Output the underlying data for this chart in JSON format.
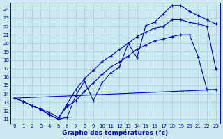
{
  "xlabel": "Graphe des températures (°c)",
  "background_color": "#cce8f0",
  "grid_color": "#aaccdd",
  "line_color": "#0000cc",
  "xlim": [
    -0.5,
    23.5
  ],
  "ylim": [
    10.5,
    24.8
  ],
  "xticks": [
    0,
    1,
    2,
    3,
    4,
    5,
    6,
    7,
    8,
    9,
    10,
    11,
    12,
    13,
    14,
    15,
    16,
    17,
    18,
    19,
    20,
    21,
    22,
    23
  ],
  "yticks": [
    11,
    12,
    13,
    14,
    15,
    16,
    17,
    18,
    19,
    20,
    21,
    22,
    23,
    24
  ],
  "line1_x": [
    0,
    1,
    2,
    3,
    4,
    5,
    6,
    7,
    8,
    9,
    10,
    11,
    12,
    13,
    14,
    15,
    16,
    17,
    18,
    19,
    20,
    21,
    22,
    23
  ],
  "line1_y": [
    13.5,
    13.1,
    12.6,
    12.2,
    11.5,
    11.0,
    11.2,
    13.8,
    15.5,
    13.2,
    15.3,
    16.5,
    17.2,
    20.0,
    18.3,
    22.1,
    22.5,
    23.5,
    24.5,
    24.5,
    23.8,
    23.3,
    22.8,
    22.3
  ],
  "line2_x": [
    0,
    1,
    2,
    3,
    4,
    5,
    6,
    7,
    8,
    9,
    10,
    11,
    12,
    13,
    14,
    15,
    16,
    17,
    18,
    19,
    20,
    21,
    22,
    23
  ],
  "line2_y": [
    13.5,
    13.1,
    12.6,
    12.2,
    11.8,
    11.2,
    12.5,
    13.2,
    14.3,
    15.3,
    16.3,
    17.2,
    17.8,
    18.5,
    19.3,
    19.8,
    20.3,
    20.5,
    20.8,
    21.0,
    21.0,
    18.4,
    14.5,
    14.5
  ],
  "line3_x": [
    0,
    23
  ],
  "line3_y": [
    13.5,
    14.5
  ],
  "line4_x": [
    0,
    1,
    2,
    3,
    4,
    5,
    6,
    7,
    8,
    9,
    10,
    11,
    12,
    13,
    14,
    15,
    16,
    17,
    18,
    19,
    20,
    21,
    22,
    23
  ],
  "line4_y": [
    13.5,
    13.1,
    12.6,
    12.2,
    11.5,
    11.0,
    12.8,
    14.5,
    15.8,
    16.8,
    17.8,
    18.5,
    19.3,
    20.0,
    20.8,
    21.3,
    21.8,
    22.0,
    22.8,
    22.8,
    22.5,
    22.3,
    22.0,
    17.0
  ]
}
